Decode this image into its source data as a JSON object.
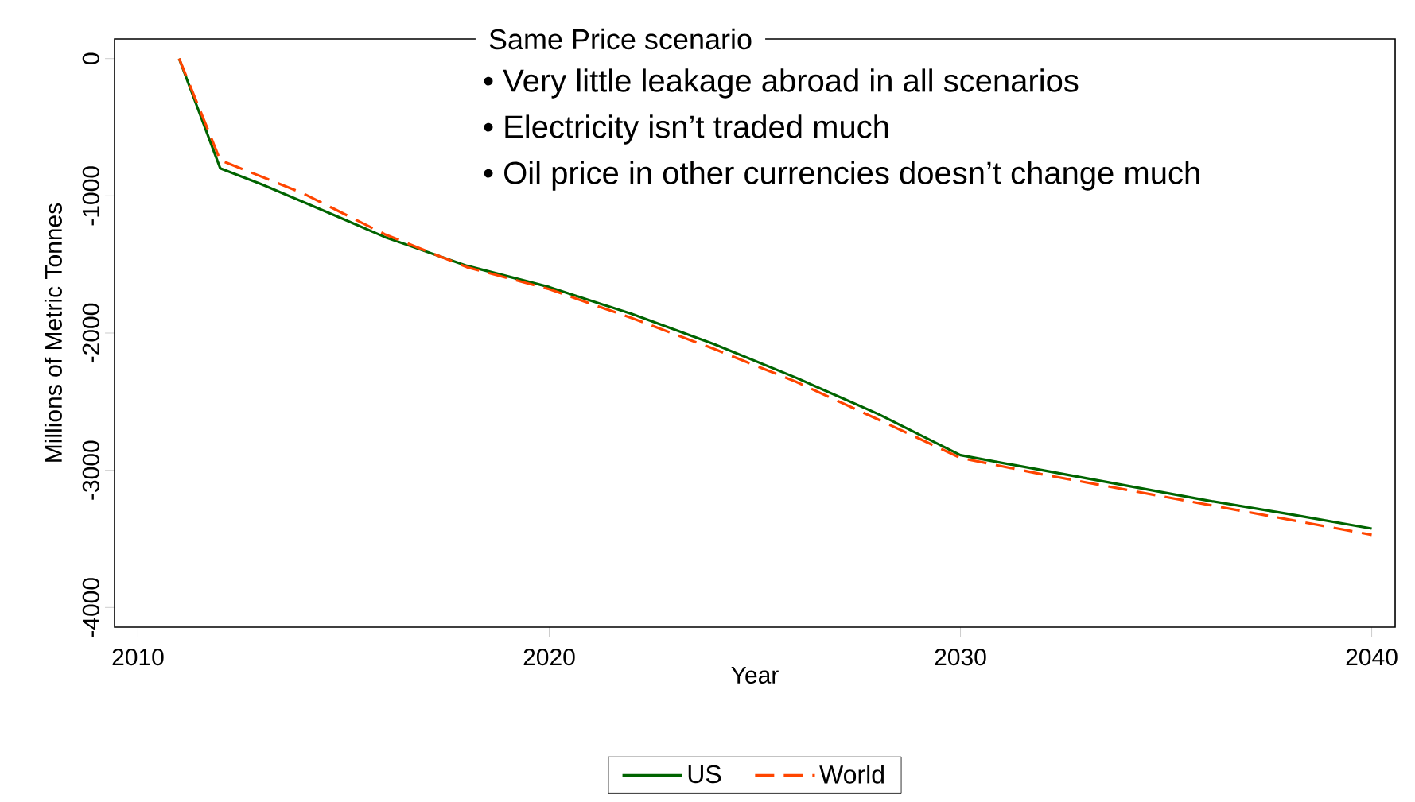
{
  "chart_data": {
    "type": "line",
    "title": "Same Price scenario",
    "xlabel": "Year",
    "ylabel": "Millions of Metric Tonnes",
    "annotations": [
      "• Very little leakage abroad in all scenarios",
      "• Electricity isn’t traded much",
      "• Oil price in other currencies doesn’t change much"
    ],
    "series": [
      {
        "name": "US",
        "color": "#006400",
        "line_style": "solid",
        "x": [
          2011,
          2012,
          2013,
          2015,
          2016,
          2018,
          2020,
          2022,
          2024,
          2026,
          2028,
          2030,
          2032,
          2034,
          2036,
          2038,
          2040
        ],
        "values": [
          0,
          -800,
          -915,
          -1170,
          -1300,
          -1510,
          -1665,
          -1860,
          -2080,
          -2325,
          -2590,
          -2890,
          -3000,
          -3110,
          -3220,
          -3320,
          -3425
        ]
      },
      {
        "name": "World",
        "color": "#ff4500",
        "line_style": "dashed",
        "x": [
          2011,
          2012,
          2014,
          2016,
          2018,
          2020,
          2022,
          2024,
          2026,
          2028,
          2030,
          2032,
          2034,
          2036,
          2038,
          2040
        ],
        "values": [
          0,
          -740,
          -980,
          -1280,
          -1520,
          -1680,
          -1890,
          -2115,
          -2355,
          -2630,
          -2910,
          -3030,
          -3140,
          -3250,
          -3360,
          -3470
        ]
      }
    ],
    "xlim": [
      2009.43,
      2040.57
    ],
    "ylim": [
      -4143,
      143
    ],
    "xticks": [
      2010,
      2020,
      2030,
      2040
    ],
    "yticks": [
      0,
      -1000,
      -2000,
      -3000,
      -4000
    ],
    "legend": "bottom"
  }
}
